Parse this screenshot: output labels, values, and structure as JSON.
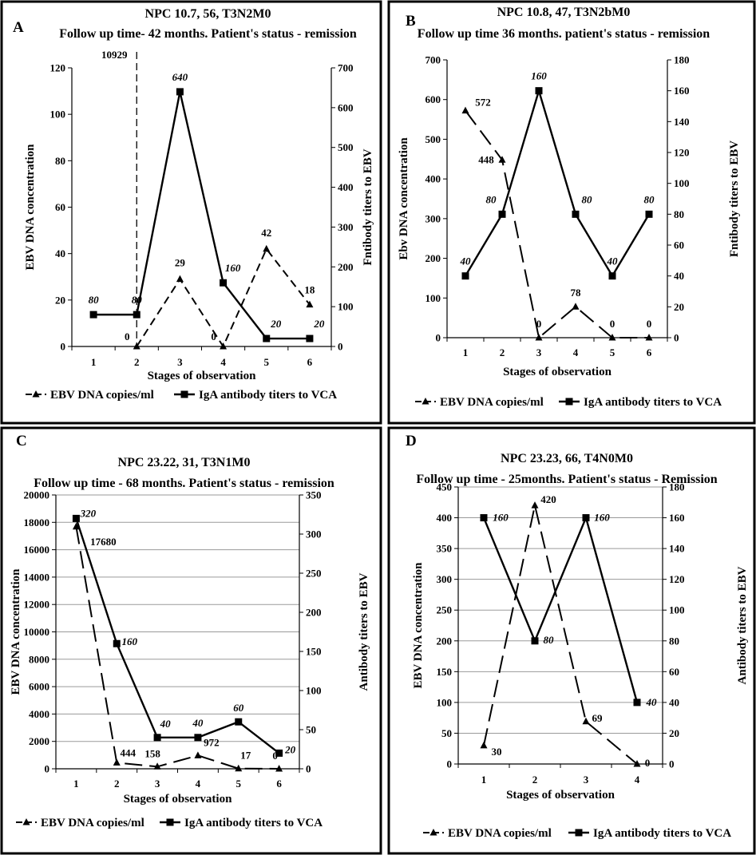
{
  "chart_data": [
    {
      "panel": "A",
      "type": "line",
      "title": "NPC 10.7, 56, T3N2M0",
      "subtitle": "Follow up time- 42 months. Patient's status - remission",
      "xlabel": "Stages of observation",
      "ylabel": "EBV DNA concentration",
      "y2label": "Fntibody titers to EBV",
      "categories": [
        "1",
        "2",
        "3",
        "4",
        "5",
        "6"
      ],
      "ylim": [
        0,
        120
      ],
      "yticks": [
        0,
        20,
        40,
        60,
        80,
        100,
        120
      ],
      "y2lim": [
        0,
        700
      ],
      "y2ticks": [
        0,
        100,
        200,
        300,
        400,
        500,
        600,
        700
      ],
      "grid": false,
      "legend_position": "bottom",
      "annotation": {
        "text": "10929",
        "x_stage": 2,
        "style": "vertical dashed line"
      },
      "series": [
        {
          "name": "EBV DNA copies/ml",
          "axis": "left",
          "style": "dashed",
          "marker": "triangle",
          "x": [
            2,
            3,
            4,
            5,
            6
          ],
          "values": [
            0,
            29,
            0,
            42,
            18
          ],
          "labels": [
            "0",
            "29",
            "0",
            "42",
            "18"
          ]
        },
        {
          "name": "IgA antibody titers to VCA",
          "axis": "right",
          "style": "solid",
          "marker": "square",
          "x": [
            1,
            2,
            3,
            4,
            5,
            6
          ],
          "values": [
            80,
            80,
            640,
            160,
            20,
            20
          ],
          "labels": [
            "80",
            "80",
            "640",
            "160",
            "20",
            "20"
          ]
        }
      ]
    },
    {
      "panel": "B",
      "type": "line",
      "title": "NPC 10.8, 47, T3N2bM0",
      "subtitle": "Follow up time 36 months. patient's status - remission",
      "xlabel": "Stages of observation",
      "ylabel": "Ebv DNA concentration",
      "y2label": "Fntibody titers to EBV",
      "categories": [
        "1",
        "2",
        "3",
        "4",
        "5",
        "6"
      ],
      "ylim": [
        0,
        700
      ],
      "yticks": [
        0,
        100,
        200,
        300,
        400,
        500,
        600,
        700
      ],
      "y2lim": [
        0,
        180
      ],
      "y2ticks": [
        0,
        20,
        40,
        60,
        80,
        100,
        120,
        140,
        160,
        180
      ],
      "grid": false,
      "legend_position": "bottom",
      "series": [
        {
          "name": "EBV DNA copies/ml",
          "axis": "left",
          "style": "dashed",
          "marker": "triangle",
          "x": [
            1,
            2,
            3,
            4,
            5,
            6
          ],
          "values": [
            572,
            448,
            0,
            78,
            0,
            0
          ],
          "labels": [
            "572",
            "448",
            "0",
            "78",
            "0",
            "0"
          ]
        },
        {
          "name": "IgA antibody titers to VCA",
          "axis": "right",
          "style": "solid",
          "marker": "square",
          "x": [
            1,
            2,
            3,
            4,
            5,
            6
          ],
          "values": [
            40,
            80,
            160,
            80,
            40,
            80
          ],
          "labels": [
            "40",
            "80",
            "160",
            "80",
            "40",
            "80"
          ]
        }
      ]
    },
    {
      "panel": "C",
      "type": "line",
      "title": "NPC 23.22, 31, T3N1M0",
      "subtitle": "Follow up time - 68 months. Patient's status - remission",
      "xlabel": "Stages of observation",
      "ylabel": "EBV DNA concentration",
      "y2label": "Antibody titers to EBV",
      "categories": [
        "1",
        "2",
        "3",
        "4",
        "5",
        "6"
      ],
      "ylim": [
        0,
        20000
      ],
      "yticks": [
        0,
        2000,
        4000,
        6000,
        8000,
        10000,
        12000,
        14000,
        16000,
        18000,
        20000
      ],
      "y2lim": [
        0,
        350
      ],
      "y2ticks": [
        0,
        50,
        100,
        150,
        200,
        250,
        300,
        350
      ],
      "grid": true,
      "legend_position": "bottom",
      "series": [
        {
          "name": "EBV DNA copies/ml",
          "axis": "left",
          "style": "dashed",
          "marker": "triangle",
          "x": [
            1,
            2,
            3,
            4,
            5,
            6
          ],
          "values": [
            17680,
            444,
            158,
            972,
            17,
            0
          ],
          "labels": [
            "17680",
            "444",
            "158",
            "972",
            "17",
            "0"
          ]
        },
        {
          "name": "IgA antibody titers to VCA",
          "axis": "right",
          "style": "solid",
          "marker": "square",
          "x": [
            1,
            2,
            3,
            4,
            5,
            6
          ],
          "values": [
            320,
            160,
            40,
            40,
            60,
            20
          ],
          "labels": [
            "320",
            "160",
            "40",
            "40",
            "60",
            "20"
          ]
        }
      ]
    },
    {
      "panel": "D",
      "type": "line",
      "title": "NPC 23.23, 66, T4N0M0",
      "subtitle": "Follow up time - 25months. Patient's status - Remission",
      "xlabel": "Stages of observation",
      "ylabel": "EBV DNA concentration",
      "y2label": "Antibody titers to EBV",
      "categories": [
        "1",
        "2",
        "3",
        "4"
      ],
      "ylim": [
        0,
        450
      ],
      "yticks": [
        0,
        50,
        100,
        150,
        200,
        250,
        300,
        350,
        400,
        450
      ],
      "y2lim": [
        0,
        180
      ],
      "y2ticks": [
        0,
        20,
        40,
        60,
        80,
        100,
        120,
        140,
        160,
        180
      ],
      "grid": true,
      "legend_position": "bottom",
      "series": [
        {
          "name": "EBV DNA copies/ml",
          "axis": "left",
          "style": "dashed",
          "marker": "triangle",
          "x": [
            1,
            2,
            3,
            4
          ],
          "values": [
            30,
            420,
            69,
            0
          ],
          "labels": [
            "30",
            "420",
            "69",
            "0"
          ]
        },
        {
          "name": "IgA antibody titers to VCA",
          "axis": "right",
          "style": "solid",
          "marker": "square",
          "x": [
            1,
            2,
            3,
            4
          ],
          "values": [
            160,
            80,
            160,
            40
          ],
          "labels": [
            "160",
            "80",
            "160",
            "40"
          ]
        }
      ]
    }
  ]
}
